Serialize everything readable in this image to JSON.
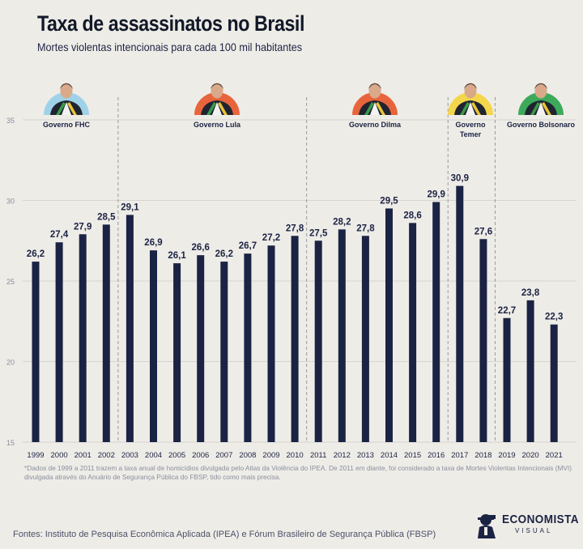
{
  "header": {
    "title": "Taxa de assassinatos no Brasil",
    "subtitle": "Mortes violentas intencionais para cada 100 mil habitantes"
  },
  "colors": {
    "background": "#eeece7",
    "bar": "#1b2344",
    "grid": "#d6d4cf",
    "divider": "#9a9a9a",
    "fhc": "#9fd2e8",
    "lula": "#e8643c",
    "dilma": "#e8643c",
    "temer": "#f3d64a",
    "bolsonaro": "#3daa5b"
  },
  "chart_data": {
    "type": "bar",
    "categories": [
      "1999",
      "2000",
      "2001",
      "2002",
      "2003",
      "2004",
      "2005",
      "2006",
      "2007",
      "2008",
      "2009",
      "2010",
      "2011",
      "2012",
      "2013",
      "2014",
      "2015",
      "2016",
      "2017",
      "2018",
      "2019",
      "2020",
      "2021"
    ],
    "values": [
      26.2,
      27.4,
      27.9,
      28.5,
      29.1,
      26.9,
      26.1,
      26.6,
      26.2,
      26.7,
      27.2,
      27.8,
      27.5,
      28.2,
      27.8,
      29.5,
      28.6,
      29.9,
      30.9,
      27.6,
      22.7,
      23.8,
      22.3
    ],
    "value_labels": [
      "26,2",
      "27,4",
      "27,9",
      "28,5",
      "29,1",
      "26,9",
      "26,1",
      "26,6",
      "26,2",
      "26,7",
      "27,2",
      "27,8",
      "27,5",
      "28,2",
      "27,8",
      "29,5",
      "28,6",
      "29,9",
      "30,9",
      "27,6",
      "22,7",
      "23,8",
      "22,3"
    ],
    "ylim": [
      15,
      35
    ],
    "yticks": [
      15,
      20,
      25,
      30,
      35
    ],
    "grid": true,
    "governments": [
      {
        "label": "Governo FHC",
        "start": "1999",
        "end": "2002",
        "color": "#9fd2e8",
        "icon": "portrait-fhc-icon"
      },
      {
        "label": "Governo Lula",
        "start": "2003",
        "end": "2010",
        "color": "#e8643c",
        "icon": "portrait-lula-icon"
      },
      {
        "label": "Governo Dilma",
        "start": "2011",
        "end": "2016",
        "color": "#e8643c",
        "icon": "portrait-dilma-icon"
      },
      {
        "label": "Governo Temer",
        "start": "2017",
        "end": "2018",
        "color": "#f3d64a",
        "icon": "portrait-temer-icon"
      },
      {
        "label": "Governo Bolsonaro",
        "start": "2019",
        "end": "2021",
        "color": "#3daa5b",
        "icon": "portrait-bolsonaro-icon"
      }
    ]
  },
  "footnote": "*Dados de 1999 a 2011 trazem a taxa anual de homicídios divulgada pelo Atlas da Violência do IPEA. De 2011 em diante, foi considerado a taxa de Mortes Violentas Intencionais (MVI) divulgada através do Anuário de Segurança Pública do FBSP, tido como mais precisa.",
  "sources": "Fontes: Instituto de Pesquisa Econômica Aplicada (IPEA) e  Fórum Brasileiro de Segurança Pública (FBSP)",
  "brand": {
    "name": "ECONOMISTA",
    "sub": "VISUAL",
    "icon": "economista-visual-logo-icon"
  }
}
